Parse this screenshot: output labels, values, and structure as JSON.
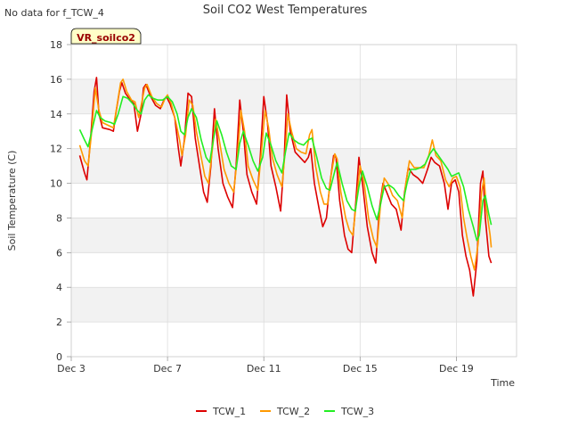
{
  "chart_data": {
    "type": "line",
    "title": "Soil CO2 West Temperatures",
    "corner_note": "No data for f_TCW_4",
    "badge": "VR_soilco2",
    "xlabel": "Time",
    "ylabel": "Soil Temperature (C)",
    "xlim": [
      3,
      21.5
    ],
    "ylim": [
      0,
      18
    ],
    "yticks": [
      0,
      2,
      4,
      6,
      8,
      10,
      12,
      14,
      16,
      18
    ],
    "xticks": [
      {
        "value": 3,
        "label": "Dec 3"
      },
      {
        "value": 7,
        "label": "Dec 7"
      },
      {
        "value": 11,
        "label": "Dec 11"
      },
      {
        "value": 15,
        "label": "Dec 15"
      },
      {
        "value": 19,
        "label": "Dec 19"
      }
    ],
    "grid": true,
    "legend_position": "bottom",
    "series": [
      {
        "name": "TCW_1",
        "color": "#dd0000",
        "points": [
          [
            3.35,
            11.6
          ],
          [
            3.55,
            10.6
          ],
          [
            3.65,
            10.2
          ],
          [
            3.8,
            12.5
          ],
          [
            3.95,
            15.3
          ],
          [
            4.05,
            16.1
          ],
          [
            4.15,
            14.0
          ],
          [
            4.3,
            13.2
          ],
          [
            4.6,
            13.1
          ],
          [
            4.75,
            13.0
          ],
          [
            4.85,
            14.0
          ],
          [
            5.0,
            15.3
          ],
          [
            5.1,
            15.8
          ],
          [
            5.25,
            15.2
          ],
          [
            5.45,
            14.8
          ],
          [
            5.6,
            14.6
          ],
          [
            5.75,
            13.0
          ],
          [
            5.9,
            14.0
          ],
          [
            6.0,
            15.5
          ],
          [
            6.1,
            15.7
          ],
          [
            6.3,
            15.0
          ],
          [
            6.5,
            14.5
          ],
          [
            6.7,
            14.3
          ],
          [
            6.85,
            14.8
          ],
          [
            6.95,
            15.0
          ],
          [
            7.1,
            14.6
          ],
          [
            7.3,
            13.8
          ],
          [
            7.45,
            12.0
          ],
          [
            7.55,
            11.0
          ],
          [
            7.7,
            12.5
          ],
          [
            7.85,
            15.2
          ],
          [
            8.0,
            15.0
          ],
          [
            8.15,
            12.6
          ],
          [
            8.35,
            10.8
          ],
          [
            8.5,
            9.5
          ],
          [
            8.65,
            8.9
          ],
          [
            8.8,
            11.0
          ],
          [
            8.95,
            14.3
          ],
          [
            9.1,
            12.0
          ],
          [
            9.3,
            10.0
          ],
          [
            9.5,
            9.2
          ],
          [
            9.7,
            8.6
          ],
          [
            9.85,
            11.0
          ],
          [
            10.0,
            14.8
          ],
          [
            10.15,
            13.0
          ],
          [
            10.3,
            10.5
          ],
          [
            10.5,
            9.5
          ],
          [
            10.7,
            8.8
          ],
          [
            10.85,
            11.5
          ],
          [
            11.0,
            15.0
          ],
          [
            11.15,
            13.5
          ],
          [
            11.3,
            11.0
          ],
          [
            11.5,
            9.8
          ],
          [
            11.7,
            8.4
          ],
          [
            11.85,
            11.5
          ],
          [
            11.95,
            15.1
          ],
          [
            12.1,
            13.0
          ],
          [
            12.3,
            11.8
          ],
          [
            12.5,
            11.5
          ],
          [
            12.7,
            11.2
          ],
          [
            12.85,
            11.5
          ],
          [
            12.95,
            12.0
          ],
          [
            13.1,
            10.0
          ],
          [
            13.3,
            8.5
          ],
          [
            13.45,
            7.5
          ],
          [
            13.6,
            8.0
          ],
          [
            13.75,
            10.0
          ],
          [
            13.9,
            11.6
          ],
          [
            14.0,
            11.5
          ],
          [
            14.15,
            9.0
          ],
          [
            14.35,
            7.0
          ],
          [
            14.5,
            6.2
          ],
          [
            14.65,
            6.0
          ],
          [
            14.8,
            8.5
          ],
          [
            14.95,
            11.5
          ],
          [
            15.1,
            10.0
          ],
          [
            15.3,
            7.5
          ],
          [
            15.5,
            6.0
          ],
          [
            15.65,
            5.4
          ],
          [
            15.8,
            8.5
          ],
          [
            15.95,
            10.0
          ],
          [
            16.1,
            9.5
          ],
          [
            16.3,
            8.8
          ],
          [
            16.5,
            8.5
          ],
          [
            16.7,
            7.3
          ],
          [
            16.85,
            9.5
          ],
          [
            17.0,
            10.9
          ],
          [
            17.2,
            10.5
          ],
          [
            17.4,
            10.3
          ],
          [
            17.6,
            10.0
          ],
          [
            17.8,
            10.8
          ],
          [
            17.95,
            11.5
          ],
          [
            18.1,
            11.2
          ],
          [
            18.3,
            11.0
          ],
          [
            18.5,
            10.0
          ],
          [
            18.65,
            8.5
          ],
          [
            18.8,
            10.0
          ],
          [
            18.95,
            10.2
          ],
          [
            19.1,
            9.5
          ],
          [
            19.25,
            7.0
          ],
          [
            19.4,
            5.8
          ],
          [
            19.55,
            5.0
          ],
          [
            19.7,
            3.5
          ],
          [
            19.85,
            5.5
          ],
          [
            20.0,
            10.0
          ],
          [
            20.1,
            10.7
          ],
          [
            20.2,
            8.0
          ],
          [
            20.35,
            5.8
          ],
          [
            20.45,
            5.4
          ]
        ]
      },
      {
        "name": "TCW_2",
        "color": "#ff9900",
        "points": [
          [
            3.35,
            12.2
          ],
          [
            3.55,
            11.3
          ],
          [
            3.7,
            11.0
          ],
          [
            3.85,
            13.0
          ],
          [
            4.0,
            15.5
          ],
          [
            4.15,
            14.2
          ],
          [
            4.3,
            13.5
          ],
          [
            4.6,
            13.3
          ],
          [
            4.75,
            13.2
          ],
          [
            4.9,
            14.5
          ],
          [
            5.05,
            15.8
          ],
          [
            5.15,
            16.0
          ],
          [
            5.3,
            15.3
          ],
          [
            5.5,
            14.8
          ],
          [
            5.65,
            14.7
          ],
          [
            5.8,
            13.8
          ],
          [
            5.95,
            14.8
          ],
          [
            6.05,
            15.5
          ],
          [
            6.15,
            15.7
          ],
          [
            6.35,
            15.0
          ],
          [
            6.55,
            14.6
          ],
          [
            6.75,
            14.4
          ],
          [
            6.9,
            14.9
          ],
          [
            7.0,
            15.1
          ],
          [
            7.15,
            14.6
          ],
          [
            7.35,
            13.5
          ],
          [
            7.5,
            12.5
          ],
          [
            7.6,
            11.6
          ],
          [
            7.75,
            12.8
          ],
          [
            7.9,
            14.8
          ],
          [
            8.05,
            14.5
          ],
          [
            8.2,
            13.0
          ],
          [
            8.4,
            11.5
          ],
          [
            8.55,
            10.4
          ],
          [
            8.7,
            10.0
          ],
          [
            8.85,
            11.8
          ],
          [
            9.0,
            13.7
          ],
          [
            9.15,
            12.5
          ],
          [
            9.35,
            10.8
          ],
          [
            9.55,
            10.0
          ],
          [
            9.75,
            9.5
          ],
          [
            9.9,
            11.5
          ],
          [
            10.05,
            14.2
          ],
          [
            10.2,
            13.0
          ],
          [
            10.35,
            11.0
          ],
          [
            10.55,
            10.2
          ],
          [
            10.75,
            9.6
          ],
          [
            10.9,
            11.8
          ],
          [
            11.05,
            14.2
          ],
          [
            11.2,
            13.2
          ],
          [
            11.35,
            11.5
          ],
          [
            11.55,
            10.5
          ],
          [
            11.75,
            9.8
          ],
          [
            11.9,
            12.0
          ],
          [
            12.0,
            14.0
          ],
          [
            12.15,
            13.0
          ],
          [
            12.35,
            12.0
          ],
          [
            12.55,
            11.8
          ],
          [
            12.75,
            11.7
          ],
          [
            12.9,
            12.8
          ],
          [
            13.0,
            13.1
          ],
          [
            13.15,
            11.0
          ],
          [
            13.35,
            9.5
          ],
          [
            13.5,
            8.8
          ],
          [
            13.65,
            8.8
          ],
          [
            13.8,
            10.5
          ],
          [
            13.95,
            11.7
          ],
          [
            14.05,
            11.4
          ],
          [
            14.2,
            9.5
          ],
          [
            14.4,
            8.0
          ],
          [
            14.55,
            7.3
          ],
          [
            14.7,
            7.0
          ],
          [
            14.85,
            9.0
          ],
          [
            15.0,
            11.0
          ],
          [
            15.15,
            10.2
          ],
          [
            15.35,
            8.0
          ],
          [
            15.55,
            6.8
          ],
          [
            15.7,
            6.3
          ],
          [
            15.85,
            8.8
          ],
          [
            16.0,
            10.3
          ],
          [
            16.15,
            10.0
          ],
          [
            16.35,
            9.3
          ],
          [
            16.55,
            9.0
          ],
          [
            16.75,
            8.0
          ],
          [
            16.9,
            10.0
          ],
          [
            17.05,
            11.3
          ],
          [
            17.25,
            10.9
          ],
          [
            17.45,
            10.9
          ],
          [
            17.65,
            10.9
          ],
          [
            17.85,
            11.6
          ],
          [
            18.0,
            12.5
          ],
          [
            18.15,
            11.6
          ],
          [
            18.35,
            11.3
          ],
          [
            18.55,
            10.2
          ],
          [
            18.7,
            9.8
          ],
          [
            18.85,
            10.3
          ],
          [
            19.0,
            10.4
          ],
          [
            19.15,
            9.8
          ],
          [
            19.3,
            8.0
          ],
          [
            19.45,
            6.8
          ],
          [
            19.6,
            5.8
          ],
          [
            19.75,
            5.0
          ],
          [
            19.9,
            6.5
          ],
          [
            20.05,
            9.5
          ],
          [
            20.15,
            10.3
          ],
          [
            20.25,
            8.5
          ],
          [
            20.4,
            7.0
          ],
          [
            20.45,
            6.3
          ]
        ]
      },
      {
        "name": "TCW_3",
        "color": "#22ee22",
        "points": [
          [
            3.35,
            13.1
          ],
          [
            3.55,
            12.5
          ],
          [
            3.7,
            12.1
          ],
          [
            3.85,
            13.0
          ],
          [
            4.05,
            14.2
          ],
          [
            4.2,
            13.8
          ],
          [
            4.4,
            13.6
          ],
          [
            4.65,
            13.5
          ],
          [
            4.8,
            13.4
          ],
          [
            4.95,
            14.0
          ],
          [
            5.15,
            15.0
          ],
          [
            5.35,
            14.9
          ],
          [
            5.55,
            14.6
          ],
          [
            5.75,
            14.2
          ],
          [
            5.9,
            14.0
          ],
          [
            6.05,
            14.8
          ],
          [
            6.2,
            15.1
          ],
          [
            6.4,
            14.9
          ],
          [
            6.6,
            14.8
          ],
          [
            6.8,
            14.8
          ],
          [
            7.0,
            15.0
          ],
          [
            7.2,
            14.7
          ],
          [
            7.4,
            14.0
          ],
          [
            7.55,
            13.0
          ],
          [
            7.7,
            12.8
          ],
          [
            7.85,
            13.8
          ],
          [
            8.0,
            14.3
          ],
          [
            8.2,
            13.8
          ],
          [
            8.4,
            12.5
          ],
          [
            8.6,
            11.5
          ],
          [
            8.75,
            11.2
          ],
          [
            8.9,
            12.5
          ],
          [
            9.05,
            13.6
          ],
          [
            9.25,
            12.8
          ],
          [
            9.45,
            11.8
          ],
          [
            9.65,
            11.0
          ],
          [
            9.85,
            10.8
          ],
          [
            10.0,
            12.3
          ],
          [
            10.15,
            13.0
          ],
          [
            10.35,
            12.2
          ],
          [
            10.55,
            11.3
          ],
          [
            10.75,
            10.7
          ],
          [
            10.95,
            11.5
          ],
          [
            11.1,
            12.9
          ],
          [
            11.3,
            12.2
          ],
          [
            11.5,
            11.3
          ],
          [
            11.75,
            10.6
          ],
          [
            11.9,
            11.8
          ],
          [
            12.05,
            12.9
          ],
          [
            12.25,
            12.5
          ],
          [
            12.45,
            12.3
          ],
          [
            12.65,
            12.2
          ],
          [
            12.85,
            12.5
          ],
          [
            13.0,
            12.6
          ],
          [
            13.2,
            11.5
          ],
          [
            13.4,
            10.3
          ],
          [
            13.6,
            9.7
          ],
          [
            13.75,
            9.6
          ],
          [
            13.95,
            10.7
          ],
          [
            14.05,
            11.2
          ],
          [
            14.25,
            10.0
          ],
          [
            14.45,
            9.0
          ],
          [
            14.65,
            8.5
          ],
          [
            14.8,
            8.4
          ],
          [
            14.95,
            9.8
          ],
          [
            15.1,
            10.7
          ],
          [
            15.3,
            9.8
          ],
          [
            15.5,
            8.7
          ],
          [
            15.7,
            7.9
          ],
          [
            15.85,
            8.8
          ],
          [
            16.0,
            9.8
          ],
          [
            16.2,
            9.9
          ],
          [
            16.4,
            9.7
          ],
          [
            16.6,
            9.3
          ],
          [
            16.8,
            9.0
          ],
          [
            16.95,
            10.0
          ],
          [
            17.1,
            10.8
          ],
          [
            17.3,
            10.8
          ],
          [
            17.5,
            10.9
          ],
          [
            17.7,
            11.1
          ],
          [
            17.9,
            11.7
          ],
          [
            18.05,
            12.0
          ],
          [
            18.25,
            11.6
          ],
          [
            18.45,
            11.2
          ],
          [
            18.65,
            10.8
          ],
          [
            18.8,
            10.4
          ],
          [
            18.95,
            10.5
          ],
          [
            19.1,
            10.6
          ],
          [
            19.3,
            9.8
          ],
          [
            19.5,
            8.5
          ],
          [
            19.7,
            7.5
          ],
          [
            19.85,
            6.7
          ],
          [
            19.95,
            7.0
          ],
          [
            20.1,
            9.0
          ],
          [
            20.2,
            9.3
          ],
          [
            20.35,
            8.2
          ],
          [
            20.45,
            7.6
          ]
        ]
      }
    ]
  }
}
